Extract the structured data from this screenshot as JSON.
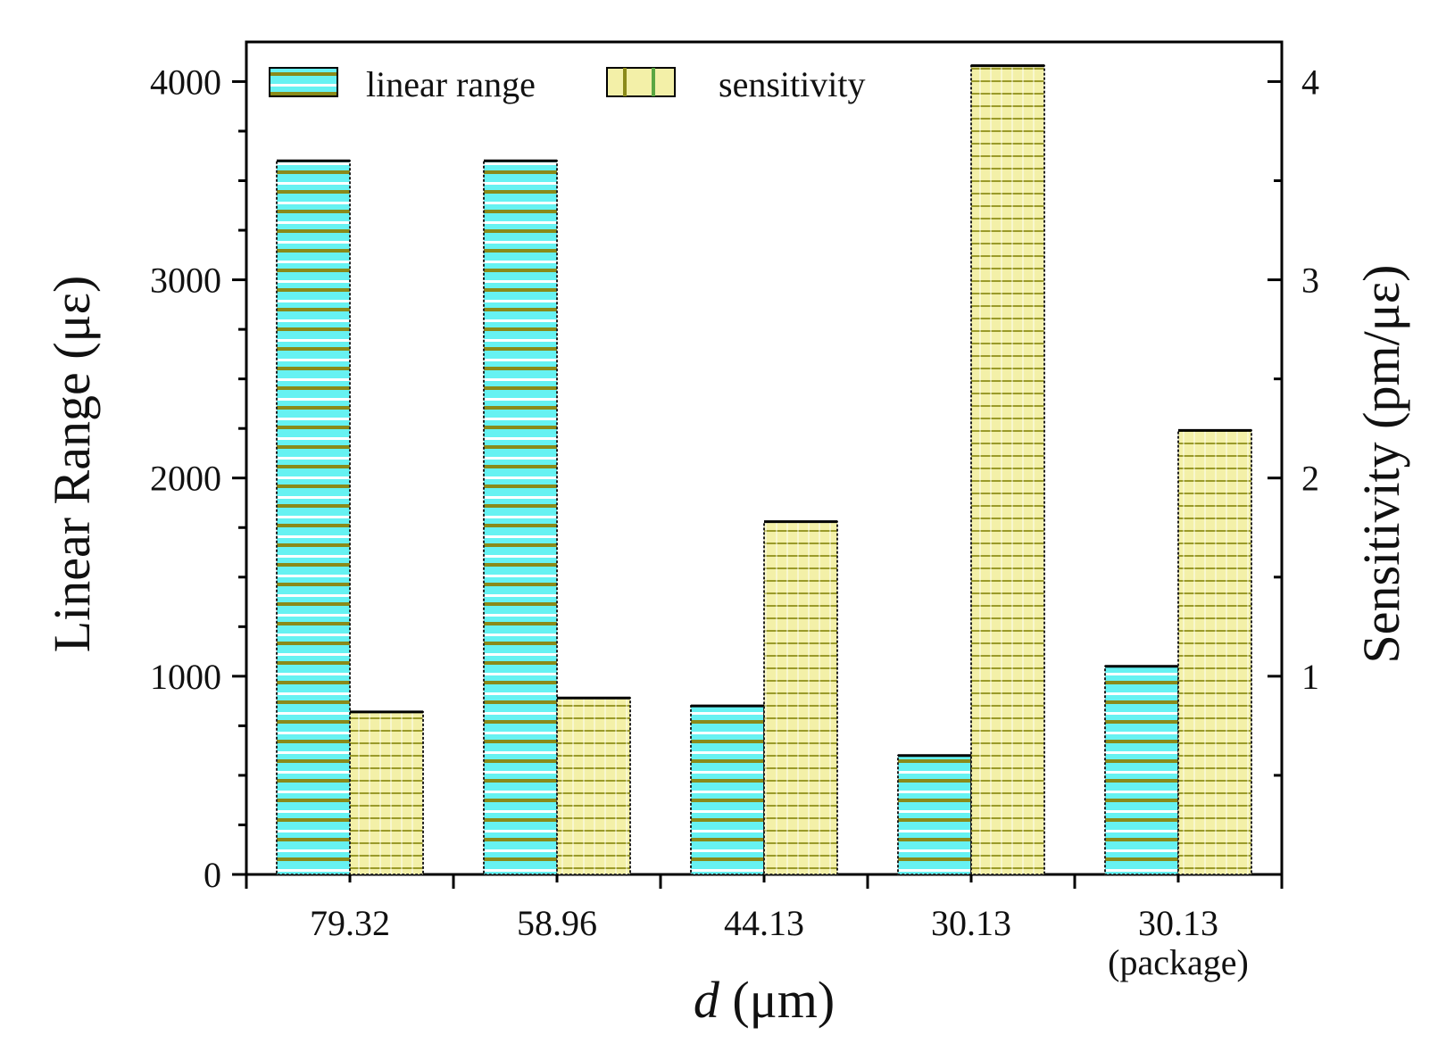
{
  "chart_data": {
    "type": "bar",
    "categories": [
      "79.32",
      "58.96",
      "44.13",
      "30.13",
      "30.13"
    ],
    "category_sublabels": [
      "",
      "",
      "",
      "",
      "(package)"
    ],
    "xlabel": {
      "italic": "d",
      "rest": " (μm)"
    },
    "ylabel_left": "Linear Range (με)",
    "ylabel_right": "Sensitivity (pm/με)",
    "ylim_left": [
      0,
      4200
    ],
    "yticks_left": [
      0,
      1000,
      2000,
      3000,
      4000
    ],
    "ylim_right": [
      0,
      4.2
    ],
    "yticks_right": [
      1,
      2,
      3,
      4
    ],
    "grid": false,
    "legend_position": "top-left",
    "series": [
      {
        "name": "linear range",
        "axis": "left",
        "values": [
          3600,
          3600,
          850,
          600,
          1050
        ],
        "fill": "#66f2f2",
        "stripe": "#8a8a1a"
      },
      {
        "name": "sensitivity",
        "axis": "right",
        "values": [
          0.82,
          0.89,
          1.78,
          4.08,
          2.24
        ],
        "fill": "#f3f0a8",
        "stripe": "#8a8a1a"
      }
    ]
  }
}
